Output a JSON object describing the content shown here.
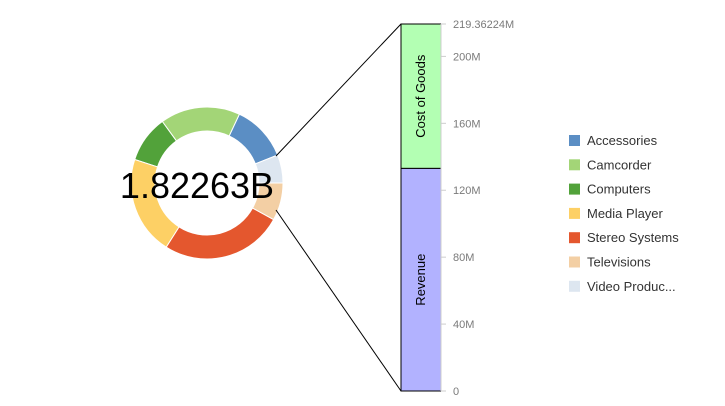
{
  "chart_data": [
    {
      "type": "pie",
      "center_label": "1.82263B",
      "categories": [
        "Accessories",
        "Camcorder",
        "Computers",
        "Media Player",
        "Stereo Systems",
        "Televisions",
        "Video Produc..."
      ],
      "values": [
        0.12,
        0.17,
        0.1,
        0.21,
        0.26,
        0.08,
        0.06
      ],
      "colors": [
        "#5b8ec4",
        "#a3d577",
        "#52a23a",
        "#fdd065",
        "#e4572e",
        "#f3cfa4",
        "#dde6f0"
      ],
      "legend_position": "right"
    },
    {
      "type": "bar",
      "stacked": true,
      "series": [
        {
          "name": "Revenue",
          "value": 133.1,
          "color": "#b2b2ff"
        },
        {
          "name": "Cost of Goods",
          "value": 86.26224,
          "color": "#b3ffb3"
        }
      ],
      "ylim": [
        0,
        219.36224
      ],
      "yticks": [
        0,
        40,
        80,
        120,
        160,
        200,
        219.36224
      ],
      "ytick_labels": [
        "0",
        "40M",
        "80M",
        "120M",
        "160M",
        "200M",
        "219.36224M"
      ]
    }
  ]
}
